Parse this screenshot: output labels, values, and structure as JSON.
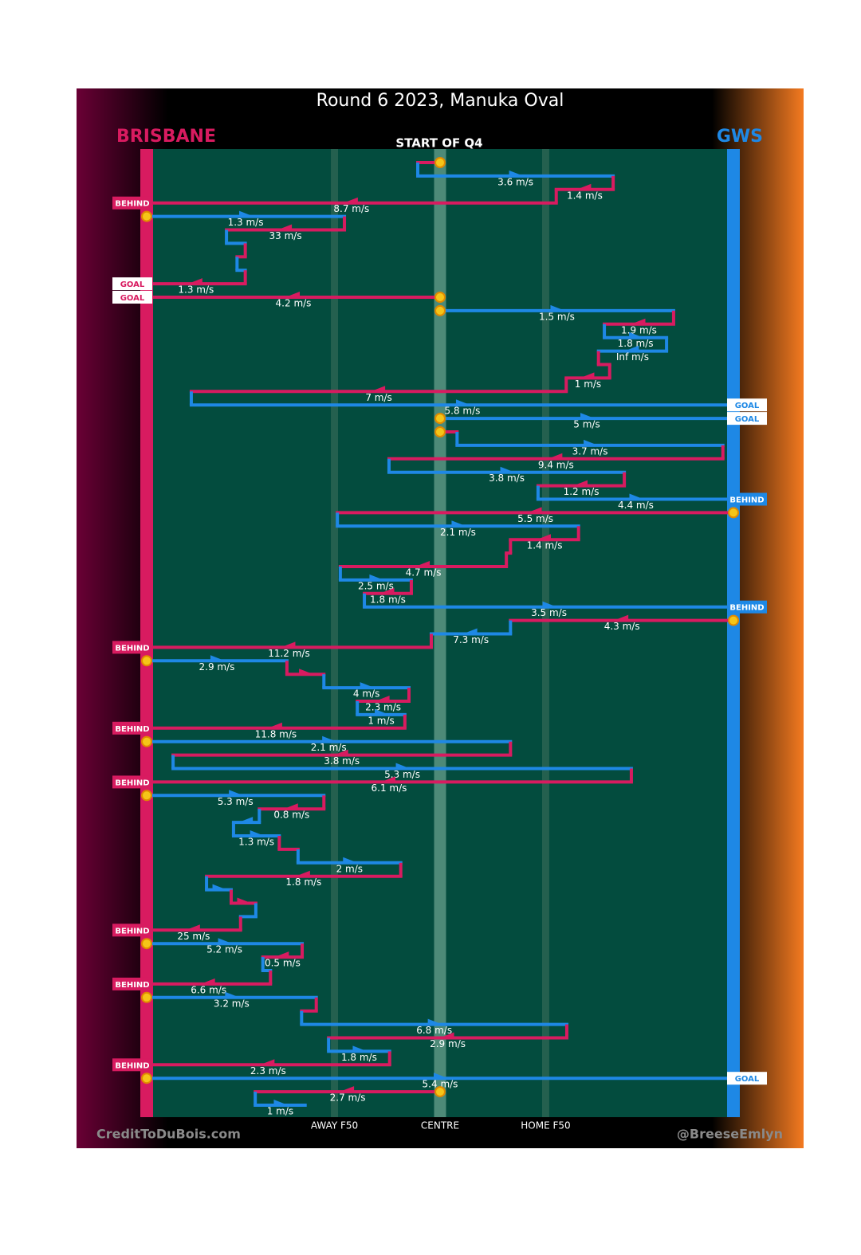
{
  "chart_data": {
    "type": "chains",
    "title": "Round 6 2023, Manuka Oval",
    "subtitle": "START OF Q4",
    "teams": [
      {
        "name": "BRISBANE",
        "color": "#d81b60"
      },
      {
        "name": "GWS",
        "color": "#1e88e5"
      }
    ],
    "xlim": [
      0,
      100
    ],
    "xticks": [
      {
        "value": 32,
        "label": "AWAY F50"
      },
      {
        "value": 50,
        "label": "CENTRE"
      },
      {
        "value": 68,
        "label": "HOME F50"
      }
    ],
    "credits": [
      "CreditToDuBois.com",
      "@BreeseEmlyn"
    ],
    "rows": [
      {
        "team": "BRISBANE",
        "from": 50,
        "to": 46.2
      },
      {
        "team": "GWS",
        "from": 46.2,
        "to": 79.5,
        "speed": "3.6 m/s"
      },
      {
        "team": "BRISBANE",
        "from": 79.5,
        "to": 69.8,
        "speed": "1.4 m/s"
      },
      {
        "team": "BRISBANE",
        "from": 69.8,
        "to": 0,
        "speed": "8.7 m/s",
        "outcome": "BEHIND"
      },
      {
        "team": "GWS",
        "from": 0,
        "to": 33.7,
        "speed": "1.3 m/s"
      },
      {
        "team": "BRISBANE",
        "from": 33.7,
        "to": 13.6,
        "speed": "33 m/s"
      },
      {
        "team": "GWS",
        "from": 13.6,
        "to": 16.8
      },
      {
        "team": "BRISBANE",
        "from": 16.8,
        "to": 15.4
      },
      {
        "team": "GWS",
        "from": 15.4,
        "to": 16.8
      },
      {
        "team": "BRISBANE",
        "from": 16.8,
        "to": 0,
        "speed": "1.3 m/s",
        "outcome": "GOAL"
      },
      {
        "team": "BRISBANE",
        "from": 50,
        "to": 0,
        "speed": "4.2 m/s",
        "outcome": "GOAL"
      },
      {
        "team": "GWS",
        "from": 50,
        "to": 89.8,
        "speed": "1.5 m/s"
      },
      {
        "team": "BRISBANE",
        "from": 89.8,
        "to": 78,
        "speed": "1.9 m/s"
      },
      {
        "team": "GWS",
        "from": 78,
        "to": 88.6,
        "speed": "1.8 m/s"
      },
      {
        "team": "GWS",
        "from": 88.6,
        "to": 77,
        "speed": "Inf m/s"
      },
      {
        "team": "BRISBANE",
        "from": 77,
        "to": 78.9
      },
      {
        "team": "BRISBANE",
        "from": 78.9,
        "to": 71.5,
        "speed": "1 m/s"
      },
      {
        "team": "BRISBANE",
        "from": 71.5,
        "to": 7.6,
        "speed": "7 m/s"
      },
      {
        "team": "GWS",
        "from": 7.6,
        "to": 100,
        "speed": "5.8 m/s",
        "outcome": "GOAL"
      },
      {
        "team": "GWS",
        "from": 50,
        "to": 100,
        "speed": "5 m/s",
        "outcome": "GOAL"
      },
      {
        "team": "BRISBANE",
        "from": 50,
        "to": 52.9
      },
      {
        "team": "GWS",
        "from": 52.9,
        "to": 98.2,
        "speed": "3.7 m/s"
      },
      {
        "team": "BRISBANE",
        "from": 98.2,
        "to": 41.3,
        "speed": "9.4 m/s"
      },
      {
        "team": "GWS",
        "from": 41.3,
        "to": 81.4,
        "speed": "3.8 m/s"
      },
      {
        "team": "BRISBANE",
        "from": 81.4,
        "to": 66.7,
        "speed": "1.2 m/s"
      },
      {
        "team": "GWS",
        "from": 66.7,
        "to": 100,
        "speed": "4.4 m/s",
        "outcome": "BEHIND"
      },
      {
        "team": "BRISBANE",
        "from": 100,
        "to": 32.5,
        "speed": "5.5 m/s"
      },
      {
        "team": "GWS",
        "from": 32.5,
        "to": 73.6,
        "speed": "2.1 m/s"
      },
      {
        "team": "BRISBANE",
        "from": 73.6,
        "to": 62,
        "speed": "1.4 m/s"
      },
      {
        "team": "BRISBANE",
        "from": 62,
        "to": 61.3
      },
      {
        "team": "BRISBANE",
        "from": 61.3,
        "to": 33,
        "speed": "4.7 m/s"
      },
      {
        "team": "GWS",
        "from": 33,
        "to": 45.1,
        "speed": "2.5 m/s"
      },
      {
        "team": "BRISBANE",
        "from": 45.1,
        "to": 37.1,
        "speed": "1.8 m/s"
      },
      {
        "team": "GWS",
        "from": 37.1,
        "to": 100,
        "speed": "3.5 m/s",
        "outcome": "BEHIND"
      },
      {
        "team": "BRISBANE",
        "from": 100,
        "to": 62,
        "speed": "4.3 m/s"
      },
      {
        "team": "GWS",
        "from": 62,
        "to": 48.5,
        "speed": "7.3 m/s"
      },
      {
        "team": "BRISBANE",
        "from": 48.5,
        "to": 0,
        "speed": "11.2 m/s",
        "outcome": "BEHIND"
      },
      {
        "team": "GWS",
        "from": 0,
        "to": 23.9,
        "speed": "2.9 m/s"
      },
      {
        "team": "BRISBANE",
        "from": 23.9,
        "to": 30.2
      },
      {
        "team": "GWS",
        "from": 30.2,
        "to": 44.7,
        "speed": "4 m/s"
      },
      {
        "team": "BRISBANE",
        "from": 44.7,
        "to": 35.9,
        "speed": "2.3 m/s"
      },
      {
        "team": "GWS",
        "from": 35.9,
        "to": 44,
        "speed": "1 m/s"
      },
      {
        "team": "BRISBANE",
        "from": 44,
        "to": 0,
        "speed": "11.8 m/s",
        "outcome": "BEHIND"
      },
      {
        "team": "GWS",
        "from": 0,
        "to": 62,
        "speed": "2.1 m/s"
      },
      {
        "team": "BRISBANE",
        "from": 62,
        "to": 4.5,
        "speed": "3.8 m/s"
      },
      {
        "team": "GWS",
        "from": 4.5,
        "to": 82.6,
        "speed": "5.3 m/s"
      },
      {
        "team": "BRISBANE",
        "from": 82.6,
        "to": 0,
        "speed": "6.1 m/s",
        "outcome": "BEHIND"
      },
      {
        "team": "GWS",
        "from": 0,
        "to": 30.2,
        "speed": "5.3 m/s"
      },
      {
        "team": "BRISBANE",
        "from": 30.2,
        "to": 19.2,
        "speed": "0.8 m/s"
      },
      {
        "team": "GWS",
        "from": 19.2,
        "to": 14.8
      },
      {
        "team": "GWS",
        "from": 14.8,
        "to": 22.6,
        "speed": "1.3 m/s"
      },
      {
        "team": "BRISBANE",
        "from": 22.6,
        "to": 25.8
      },
      {
        "team": "GWS",
        "from": 25.8,
        "to": 43.3,
        "speed": "2 m/s"
      },
      {
        "team": "BRISBANE",
        "from": 43.3,
        "to": 10.2,
        "speed": "1.8 m/s"
      },
      {
        "team": "GWS",
        "from": 10.2,
        "to": 14.4
      },
      {
        "team": "BRISBANE",
        "from": 14.4,
        "to": 18.6
      },
      {
        "team": "GWS",
        "from": 18.6,
        "to": 16
      },
      {
        "team": "BRISBANE",
        "from": 16,
        "to": 0,
        "speed": "25 m/s",
        "outcome": "BEHIND"
      },
      {
        "team": "GWS",
        "from": 0,
        "to": 26.5,
        "speed": "5.2 m/s"
      },
      {
        "team": "BRISBANE",
        "from": 26.5,
        "to": 19.8,
        "speed": "0.5 m/s"
      },
      {
        "team": "GWS",
        "from": 19.8,
        "to": 21.1
      },
      {
        "team": "BRISBANE",
        "from": 21.1,
        "to": 0,
        "speed": "6.6 m/s",
        "outcome": "BEHIND"
      },
      {
        "team": "GWS",
        "from": 0,
        "to": 28.9,
        "speed": "3.2 m/s"
      },
      {
        "team": "BRISBANE",
        "from": 28.9,
        "to": 26.4
      },
      {
        "team": "GWS",
        "from": 26.4,
        "to": 71.6,
        "speed": "6.8 m/s"
      },
      {
        "team": "BRISBANE",
        "from": 71.6,
        "to": 31,
        "speed": "2.9 m/s"
      },
      {
        "team": "GWS",
        "from": 31,
        "to": 41.4,
        "speed": "1.8 m/s"
      },
      {
        "team": "BRISBANE",
        "from": 41.4,
        "to": 0,
        "speed": "2.3 m/s",
        "outcome": "BEHIND"
      },
      {
        "team": "GWS",
        "from": 0,
        "to": 100,
        "speed": "5.4 m/s",
        "outcome": "GOAL"
      },
      {
        "team": "BRISBANE",
        "from": 50,
        "to": 18.5,
        "speed": "2.7 m/s"
      },
      {
        "team": "GWS",
        "from": 18.5,
        "to": 27,
        "speed": "1 m/s"
      }
    ]
  }
}
